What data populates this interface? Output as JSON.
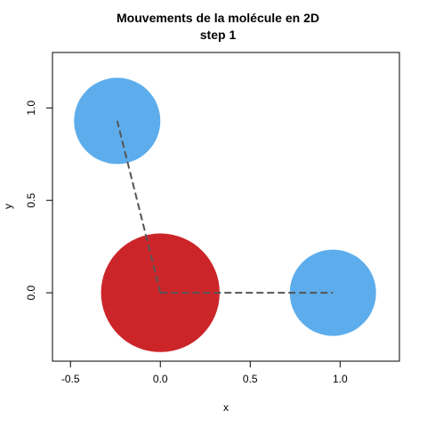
{
  "chart_data": {
    "type": "scatter",
    "title": "Mouvements de la molécule en 2D",
    "subtitle": "step 1",
    "xlabel": "x",
    "ylabel": "y",
    "xlim": [
      -0.6,
      1.33
    ],
    "ylim": [
      -0.37,
      1.3
    ],
    "xticks": [
      -0.5,
      0.0,
      0.5,
      1.0
    ],
    "xtick_labels": [
      "-0.5",
      "0.0",
      "0.5",
      "1.0"
    ],
    "yticks": [
      0.0,
      0.5,
      1.0
    ],
    "ytick_labels": [
      "0.0",
      "0.5",
      "1.0"
    ],
    "grid": false,
    "bonds": [
      {
        "from": 0,
        "to": 1,
        "color": "#555555",
        "style": "dashed"
      },
      {
        "from": 0,
        "to": 2,
        "color": "#555555",
        "style": "dashed"
      }
    ],
    "atoms": [
      {
        "x": 0.0,
        "y": 0.0,
        "radius": 0.33,
        "color": "#CC2529"
      },
      {
        "x": 0.96,
        "y": 0.0,
        "radius": 0.24,
        "color": "#5DADEC"
      },
      {
        "x": -0.24,
        "y": 0.93,
        "radius": 0.24,
        "color": "#5DADEC"
      }
    ]
  }
}
